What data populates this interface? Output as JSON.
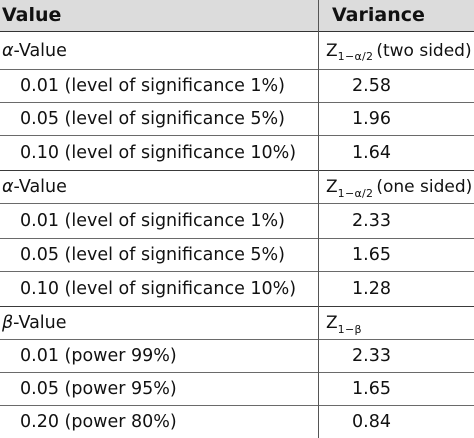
{
  "header": {
    "left": "Value",
    "right": "Variance"
  },
  "sections": [
    {
      "symbol": "α",
      "label": "-Value",
      "z_main": "Z",
      "z_sub": "1−α/2",
      "z_note": "(two sided)",
      "rows": [
        {
          "label": "0.01 (level of significance 1%)",
          "value": "2.58"
        },
        {
          "label": "0.05 (level of significance 5%)",
          "value": "1.96"
        },
        {
          "label": "0.10 (level of significance 10%)",
          "value": "1.64"
        }
      ]
    },
    {
      "symbol": "α",
      "label": "-Value",
      "z_main": "Z",
      "z_sub": "1−α/2",
      "z_note": "(one sided)",
      "rows": [
        {
          "label": "0.01 (level of significance 1%)",
          "value": "2.33"
        },
        {
          "label": "0.05 (level of significance 5%)",
          "value": "1.65"
        },
        {
          "label": "0.10 (level of significance 10%)",
          "value": "1.28"
        }
      ]
    },
    {
      "symbol": "β",
      "label": "-Value",
      "z_main": "Z",
      "z_sub": "1−β",
      "z_note": "",
      "rows": [
        {
          "label": "0.01 (power 99%)",
          "value": "2.33"
        },
        {
          "label": "0.05 (power 95%)",
          "value": "1.65"
        },
        {
          "label": "0.20 (power 80%)",
          "value": "0.84"
        }
      ]
    }
  ]
}
